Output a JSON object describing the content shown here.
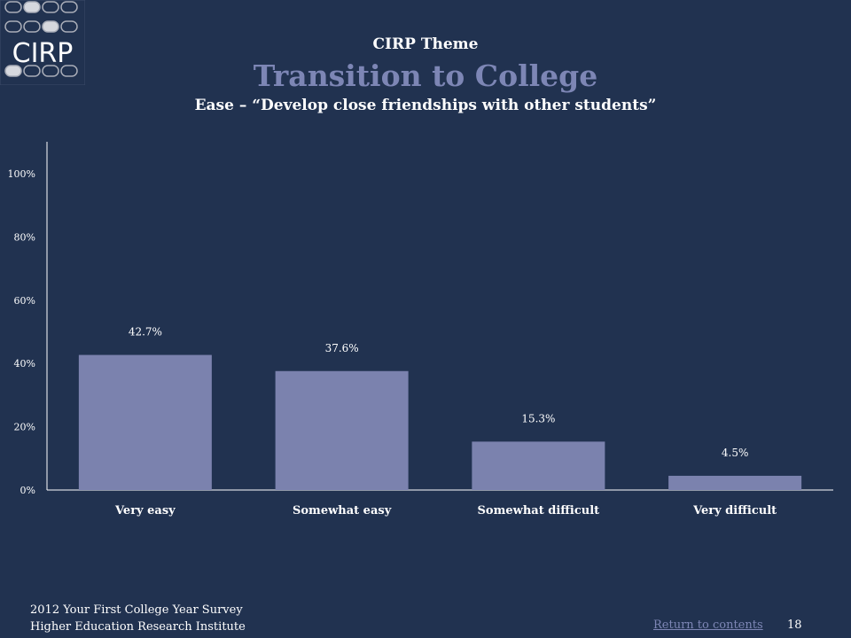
{
  "logo": {
    "text": "CIRP",
    "icon": "cirp-logo-icon",
    "dot_color": "#a9adb8",
    "dot_highlight": "#d6d8de"
  },
  "header": {
    "supertitle": "CIRP Theme",
    "title": "Transition to College",
    "subtitle": "Ease – “Develop close friendships with other students”"
  },
  "colors": {
    "background": "#213250",
    "bar": "#7b82ae",
    "title": "#7d86b5"
  },
  "chart_data": {
    "type": "bar",
    "categories": [
      "Very easy",
      "Somewhat easy",
      "Somewhat difficult",
      "Very difficult"
    ],
    "values": [
      42.7,
      37.6,
      15.3,
      4.5
    ],
    "value_labels": [
      "42.7%",
      "37.6%",
      "15.3%",
      "4.5%"
    ],
    "ytick_labels": [
      "0%",
      "20%",
      "40%",
      "60%",
      "80%",
      "100%"
    ],
    "yticks": [
      0,
      20,
      40,
      60,
      80,
      100
    ],
    "ylim": [
      0,
      110
    ],
    "grid": false,
    "legend": "none"
  },
  "footer": {
    "survey": "2012 Your First College Year Survey",
    "institute": "Higher Education Research Institute",
    "return_link": "Return to contents",
    "page_number": "18"
  }
}
